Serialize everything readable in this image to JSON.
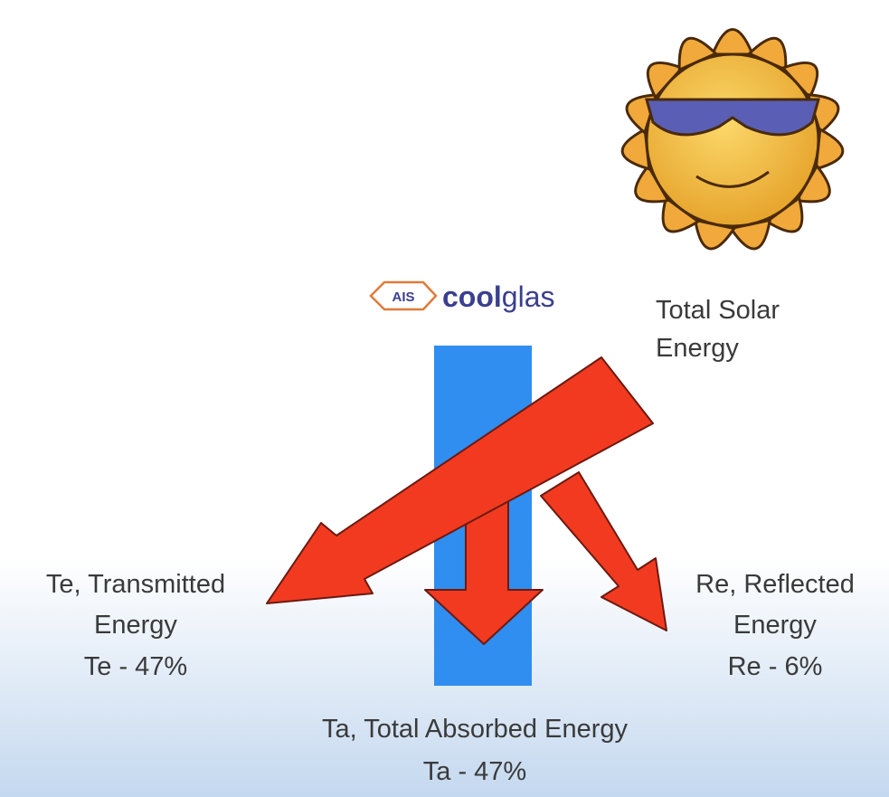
{
  "logo": {
    "mark": "AIS",
    "name_bold": "cool",
    "name_light": "glas"
  },
  "source": {
    "label_lines": [
      "Total Solar",
      "Energy"
    ]
  },
  "transmitted": {
    "label_lines": [
      "Te, Transmitted",
      "Energy",
      "Te - 47%"
    ]
  },
  "reflected": {
    "label_lines": [
      "Re, Reflected",
      "Energy",
      "Re - 6%"
    ]
  },
  "absorbed": {
    "label_lines": [
      "Ta, Total Absorbed Energy",
      "Ta - 47%"
    ]
  }
}
